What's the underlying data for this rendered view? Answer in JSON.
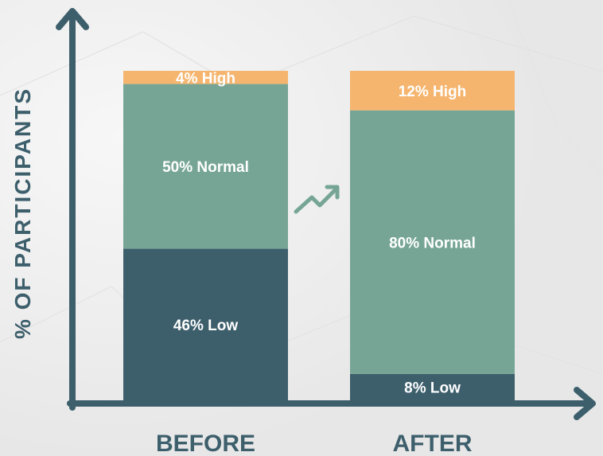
{
  "chart_data": {
    "type": "bar",
    "stacked": true,
    "ylabel": "% OF PARTICIPANTS",
    "xlabel": "",
    "ylim": [
      0,
      100
    ],
    "categories": [
      "BEFORE",
      "AFTER"
    ],
    "series": [
      {
        "name": "Low",
        "values": [
          46,
          8
        ],
        "labels": [
          "46% Low",
          "8% Low"
        ]
      },
      {
        "name": "Normal",
        "values": [
          50,
          80
        ],
        "labels": [
          "50% Normal",
          "80% Normal"
        ]
      },
      {
        "name": "High",
        "values": [
          4,
          12
        ],
        "labels": [
          "4% High",
          "12% High"
        ]
      }
    ],
    "grid": false,
    "legend": "none",
    "annotations": [
      "trend-up-arrow between bars"
    ]
  },
  "colors": {
    "background": "#efefef",
    "axis": "#3d5f6c",
    "low": "#3d5f6c",
    "normal": "#76a596",
    "high": "#f5b56e",
    "segment_text": "#ffffff",
    "trend_arrow": "#76a596"
  }
}
